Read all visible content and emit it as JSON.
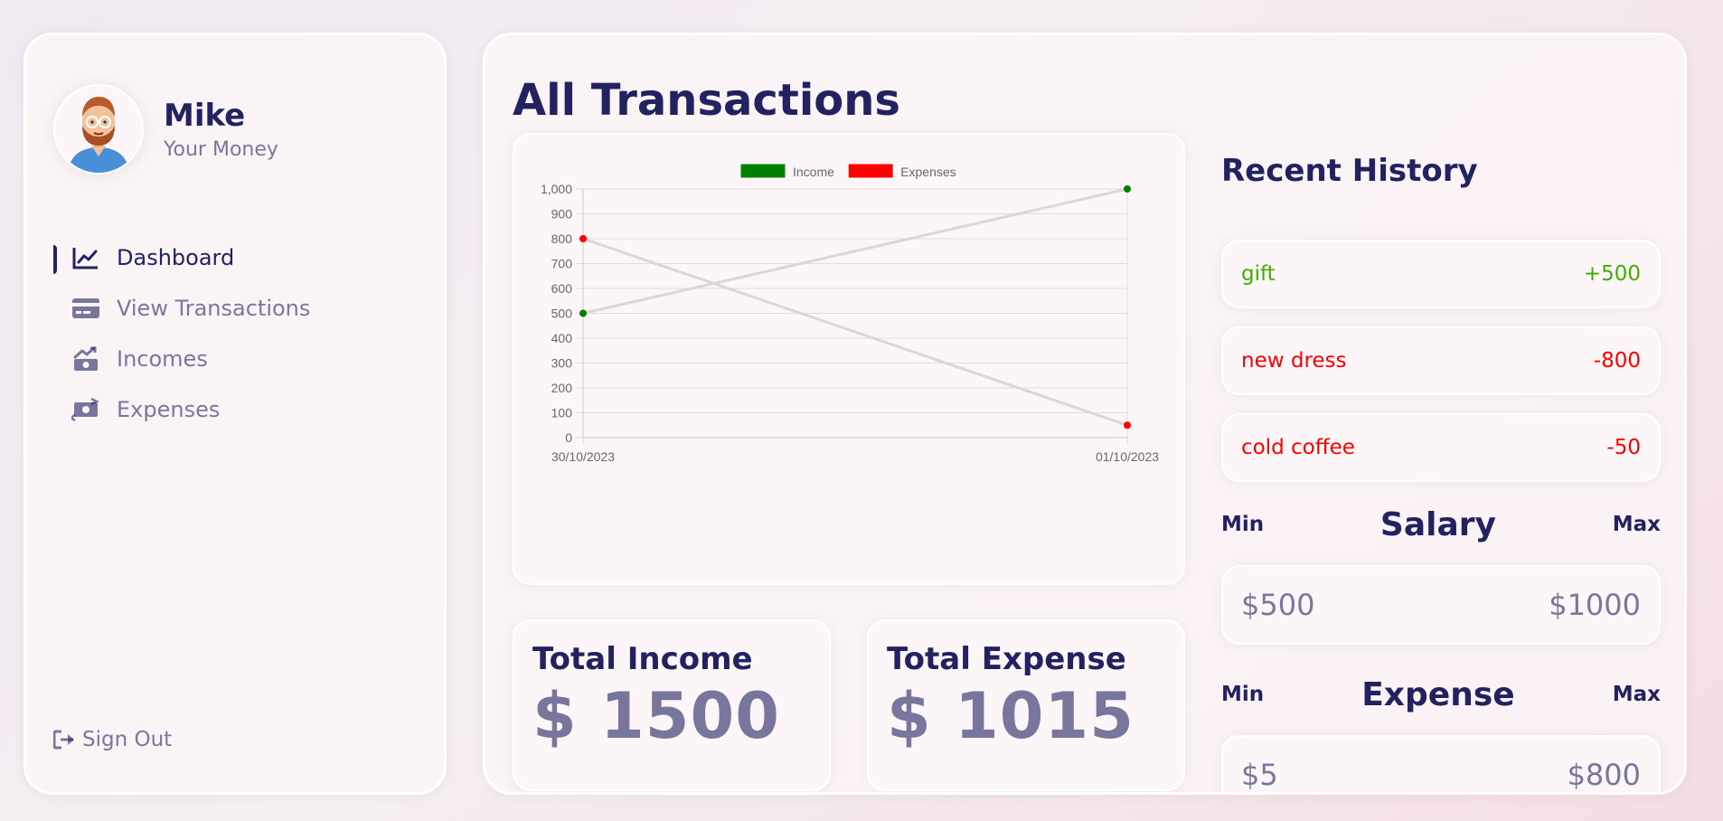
{
  "user": {
    "name": "Mike",
    "subtitle": "Your Money"
  },
  "nav": {
    "items": [
      {
        "label": "Dashboard",
        "icon": "chart-line-icon",
        "active": true
      },
      {
        "label": "View Transactions",
        "icon": "credit-card-icon",
        "active": false
      },
      {
        "label": "Incomes",
        "icon": "money-bill-trend-up-icon",
        "active": false
      },
      {
        "label": "Expenses",
        "icon": "money-bill-transfer-icon",
        "active": false
      }
    ],
    "sign_out": "Sign Out"
  },
  "main": {
    "title": "All Transactions",
    "total_income": {
      "label": "Total Income",
      "value": "$ 1500"
    },
    "total_expense": {
      "label": "Total Expense",
      "value": "$ 1015"
    }
  },
  "history": {
    "title": "Recent History",
    "items": [
      {
        "title": "gift",
        "amount": "+500",
        "type": "income"
      },
      {
        "title": "new dress",
        "amount": "-800",
        "type": "expense"
      },
      {
        "title": "cold coffee",
        "amount": "-50",
        "type": "expense"
      }
    ]
  },
  "salary": {
    "min_label": "Min",
    "title": "Salary",
    "max_label": "Max",
    "min": "$500",
    "max": "$1000"
  },
  "expense": {
    "min_label": "Min",
    "title": "Expense",
    "max_label": "Max",
    "min": "$5",
    "max": "$800"
  },
  "colors": {
    "primary": "#222260",
    "income": "#42ad00",
    "expense": "#ff0000",
    "income_series": "#008000",
    "expense_series": "#ff0000"
  },
  "chart_data": {
    "type": "line",
    "categories": [
      "30/10/2023",
      "01/10/2023"
    ],
    "series": [
      {
        "name": "Income",
        "values": [
          500,
          1000
        ],
        "color": "#008000"
      },
      {
        "name": "Expenses",
        "values": [
          800,
          50
        ],
        "color": "#ff0000"
      }
    ],
    "ylim": [
      0,
      1000
    ],
    "yticks": [
      "0",
      "100",
      "200",
      "300",
      "400",
      "500",
      "600",
      "700",
      "800",
      "900",
      "1,000"
    ],
    "legend": "top-center",
    "grid": true
  }
}
